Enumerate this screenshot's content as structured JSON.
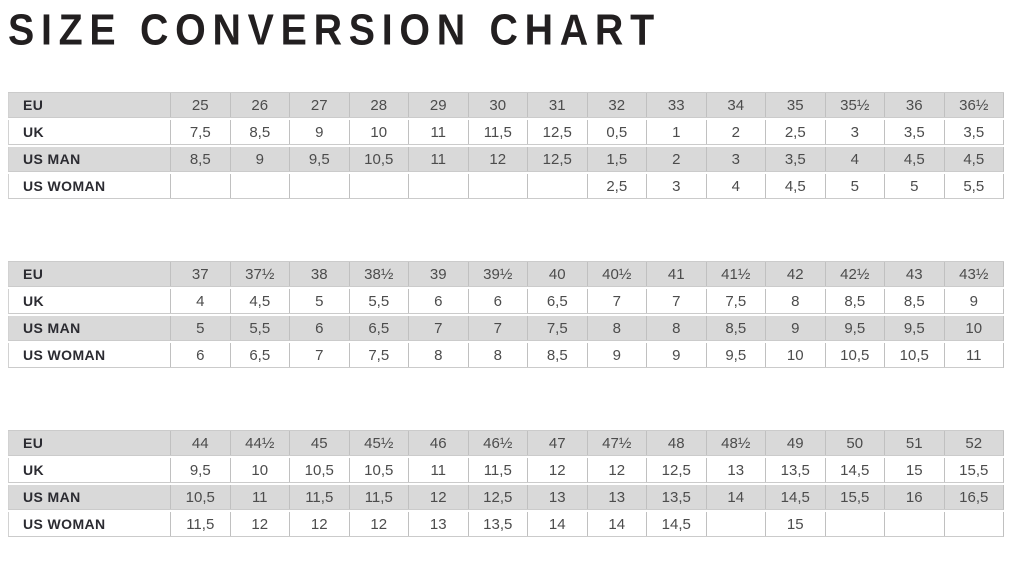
{
  "title": "SIZE CONVERSION CHART",
  "colors": {
    "shade": "#d9d9d9",
    "vline": "#c0c0c0",
    "hline": "#cbcbcb",
    "edge": "#d2d2d2",
    "label-color": "#2b2b31",
    "value-color": "#4c4c4c",
    "title-color": "#221f20"
  },
  "chart_data": [
    {
      "type": "table",
      "rows": [
        {
          "label": "EU",
          "values": [
            "25",
            "26",
            "27",
            "28",
            "29",
            "30",
            "31",
            "32",
            "33",
            "34",
            "35",
            "35½",
            "36",
            "36½"
          ]
        },
        {
          "label": "UK",
          "values": [
            "7,5",
            "8,5",
            "9",
            "10",
            "11",
            "11,5",
            "12,5",
            "0,5",
            "1",
            "2",
            "2,5",
            "3",
            "3,5",
            "3,5"
          ]
        },
        {
          "label": "US MAN",
          "values": [
            "8,5",
            "9",
            "9,5",
            "10,5",
            "11",
            "12",
            "12,5",
            "1,5",
            "2",
            "3",
            "3,5",
            "4",
            "4,5",
            "4,5"
          ]
        },
        {
          "label": "US WOMAN",
          "values": [
            "",
            "",
            "",
            "",
            "",
            "",
            "",
            "2,5",
            "3",
            "4",
            "4,5",
            "5",
            "5",
            "5,5"
          ]
        }
      ]
    },
    {
      "type": "table",
      "rows": [
        {
          "label": "EU",
          "values": [
            "37",
            "37½",
            "38",
            "38½",
            "39",
            "39½",
            "40",
            "40½",
            "41",
            "41½",
            "42",
            "42½",
            "43",
            "43½"
          ]
        },
        {
          "label": "UK",
          "values": [
            "4",
            "4,5",
            "5",
            "5,5",
            "6",
            "6",
            "6,5",
            "7",
            "7",
            "7,5",
            "8",
            "8,5",
            "8,5",
            "9"
          ]
        },
        {
          "label": "US MAN",
          "values": [
            "5",
            "5,5",
            "6",
            "6,5",
            "7",
            "7",
            "7,5",
            "8",
            "8",
            "8,5",
            "9",
            "9,5",
            "9,5",
            "10"
          ]
        },
        {
          "label": "US WOMAN",
          "values": [
            "6",
            "6,5",
            "7",
            "7,5",
            "8",
            "8",
            "8,5",
            "9",
            "9",
            "9,5",
            "10",
            "10,5",
            "10,5",
            "11"
          ]
        }
      ]
    },
    {
      "type": "table",
      "rows": [
        {
          "label": "EU",
          "values": [
            "44",
            "44½",
            "45",
            "45½",
            "46",
            "46½",
            "47",
            "47½",
            "48",
            "48½",
            "49",
            "50",
            "51",
            "52"
          ]
        },
        {
          "label": "UK",
          "values": [
            "9,5",
            "10",
            "10,5",
            "10,5",
            "11",
            "11,5",
            "12",
            "12",
            "12,5",
            "13",
            "13,5",
            "14,5",
            "15",
            "15,5"
          ]
        },
        {
          "label": "US MAN",
          "values": [
            "10,5",
            "11",
            "11,5",
            "11,5",
            "12",
            "12,5",
            "13",
            "13",
            "13,5",
            "14",
            "14,5",
            "15,5",
            "16",
            "16,5"
          ]
        },
        {
          "label": "US WOMAN",
          "values": [
            "11,5",
            "12",
            "12",
            "12",
            "13",
            "13,5",
            "14",
            "14",
            "14,5",
            "",
            "15",
            "",
            "",
            ""
          ]
        }
      ]
    }
  ]
}
